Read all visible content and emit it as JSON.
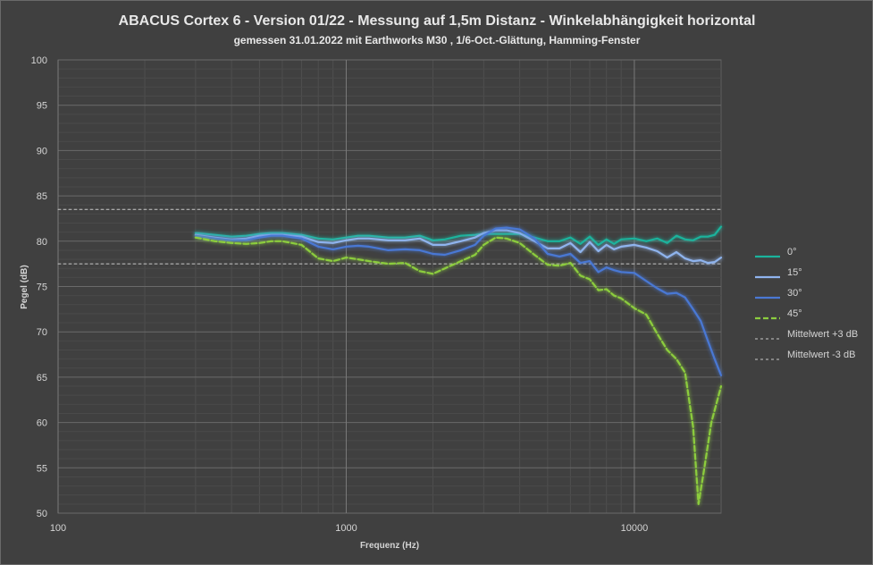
{
  "chart_data": {
    "type": "line",
    "title": "ABACUS Cortex 6 - Version 01/22 - Messung auf 1,5m Distanz - Winkelabhängigkeit horizontal",
    "subtitle": "gemessen 31.01.2022  mit Earthworks M30 , 1/6-Oct.-Glättung, Hamming-Fenster",
    "xlabel": "Frequenz (Hz)",
    "ylabel": "Pegel (dB)",
    "x_scale": "log",
    "xlim": [
      100,
      20000
    ],
    "ylim": [
      50,
      100
    ],
    "x_ticks": [
      100,
      1000,
      10000
    ],
    "x_tick_labels": [
      "100",
      "1000",
      "10000"
    ],
    "y_ticks": [
      50,
      55,
      60,
      65,
      70,
      75,
      80,
      85,
      90,
      95,
      100
    ],
    "y_tick_labels": [
      "50",
      "55",
      "60",
      "65",
      "70",
      "75",
      "80",
      "85",
      "90",
      "95",
      "100"
    ],
    "grid": true,
    "legend_position": "right",
    "series": [
      {
        "name": "0°",
        "color": "#1ab39c",
        "dash": "solid",
        "points": [
          [
            300,
            80.9
          ],
          [
            350,
            80.7
          ],
          [
            400,
            80.5
          ],
          [
            450,
            80.6
          ],
          [
            500,
            80.8
          ],
          [
            550,
            80.9
          ],
          [
            600,
            80.9
          ],
          [
            700,
            80.7
          ],
          [
            800,
            80.3
          ],
          [
            900,
            80.2
          ],
          [
            1000,
            80.4
          ],
          [
            1100,
            80.6
          ],
          [
            1200,
            80.6
          ],
          [
            1400,
            80.4
          ],
          [
            1600,
            80.4
          ],
          [
            1800,
            80.6
          ],
          [
            2000,
            80.1
          ],
          [
            2200,
            80.2
          ],
          [
            2500,
            80.6
          ],
          [
            2800,
            80.7
          ],
          [
            3000,
            80.8
          ],
          [
            3300,
            80.8
          ],
          [
            3600,
            80.8
          ],
          [
            4000,
            80.8
          ],
          [
            4500,
            80.4
          ],
          [
            5000,
            80.0
          ],
          [
            5500,
            80.0
          ],
          [
            6000,
            80.4
          ],
          [
            6500,
            79.7
          ],
          [
            7000,
            80.5
          ],
          [
            7500,
            79.6
          ],
          [
            8000,
            80.2
          ],
          [
            8500,
            79.7
          ],
          [
            9000,
            80.2
          ],
          [
            10000,
            80.3
          ],
          [
            11000,
            80.0
          ],
          [
            12000,
            80.3
          ],
          [
            13000,
            79.8
          ],
          [
            14000,
            80.6
          ],
          [
            15000,
            80.2
          ],
          [
            16000,
            80.1
          ],
          [
            17000,
            80.5
          ],
          [
            18000,
            80.5
          ],
          [
            19000,
            80.7
          ],
          [
            20000,
            81.6
          ]
        ]
      },
      {
        "name": "15°",
        "color": "#8fb4ee",
        "dash": "solid",
        "points": [
          [
            300,
            80.7
          ],
          [
            350,
            80.4
          ],
          [
            400,
            80.2
          ],
          [
            450,
            80.3
          ],
          [
            500,
            80.6
          ],
          [
            550,
            80.7
          ],
          [
            600,
            80.7
          ],
          [
            700,
            80.5
          ],
          [
            800,
            79.9
          ],
          [
            900,
            79.8
          ],
          [
            1000,
            80.1
          ],
          [
            1100,
            80.3
          ],
          [
            1200,
            80.3
          ],
          [
            1400,
            80.1
          ],
          [
            1600,
            80.1
          ],
          [
            1800,
            80.3
          ],
          [
            2000,
            79.6
          ],
          [
            2200,
            79.6
          ],
          [
            2500,
            80.0
          ],
          [
            2800,
            80.4
          ],
          [
            3000,
            80.9
          ],
          [
            3300,
            81.2
          ],
          [
            3600,
            81.2
          ],
          [
            4000,
            80.9
          ],
          [
            4500,
            80.0
          ],
          [
            5000,
            79.2
          ],
          [
            5500,
            79.2
          ],
          [
            6000,
            79.8
          ],
          [
            6500,
            78.8
          ],
          [
            7000,
            79.9
          ],
          [
            7500,
            78.9
          ],
          [
            8000,
            79.6
          ],
          [
            8500,
            79.1
          ],
          [
            9000,
            79.4
          ],
          [
            10000,
            79.6
          ],
          [
            11000,
            79.3
          ],
          [
            12000,
            78.9
          ],
          [
            13000,
            78.2
          ],
          [
            14000,
            78.8
          ],
          [
            15000,
            78.1
          ],
          [
            16000,
            77.8
          ],
          [
            17000,
            77.9
          ],
          [
            18000,
            77.6
          ],
          [
            19000,
            77.7
          ],
          [
            20000,
            78.2
          ]
        ]
      },
      {
        "name": "30°",
        "color": "#4a78d4",
        "dash": "solid",
        "points": [
          [
            300,
            80.6
          ],
          [
            350,
            80.3
          ],
          [
            400,
            80.1
          ],
          [
            450,
            80.1
          ],
          [
            500,
            80.4
          ],
          [
            550,
            80.6
          ],
          [
            600,
            80.6
          ],
          [
            700,
            80.3
          ],
          [
            800,
            79.4
          ],
          [
            900,
            79.1
          ],
          [
            1000,
            79.4
          ],
          [
            1100,
            79.5
          ],
          [
            1200,
            79.4
          ],
          [
            1400,
            79.0
          ],
          [
            1600,
            79.1
          ],
          [
            1800,
            79.0
          ],
          [
            2000,
            78.6
          ],
          [
            2200,
            78.5
          ],
          [
            2500,
            79.0
          ],
          [
            2800,
            79.6
          ],
          [
            3000,
            80.6
          ],
          [
            3300,
            81.4
          ],
          [
            3600,
            81.5
          ],
          [
            4000,
            81.3
          ],
          [
            4500,
            80.3
          ],
          [
            5000,
            78.6
          ],
          [
            5500,
            78.3
          ],
          [
            6000,
            78.6
          ],
          [
            6500,
            77.6
          ],
          [
            7000,
            77.8
          ],
          [
            7500,
            76.6
          ],
          [
            8000,
            77.1
          ],
          [
            8500,
            76.8
          ],
          [
            9000,
            76.6
          ],
          [
            10000,
            76.5
          ],
          [
            11000,
            75.6
          ],
          [
            12000,
            74.8
          ],
          [
            13000,
            74.2
          ],
          [
            14000,
            74.3
          ],
          [
            15000,
            73.8
          ],
          [
            16000,
            72.5
          ],
          [
            17000,
            71.2
          ],
          [
            18000,
            69.0
          ],
          [
            19000,
            67.0
          ],
          [
            20000,
            65.2
          ]
        ]
      },
      {
        "name": "45°",
        "color": "#8ccd3e",
        "dash": "dashed",
        "points": [
          [
            300,
            80.4
          ],
          [
            350,
            80.0
          ],
          [
            400,
            79.8
          ],
          [
            450,
            79.7
          ],
          [
            500,
            79.8
          ],
          [
            550,
            80.0
          ],
          [
            600,
            80.0
          ],
          [
            700,
            79.6
          ],
          [
            800,
            78.1
          ],
          [
            900,
            77.8
          ],
          [
            1000,
            78.2
          ],
          [
            1100,
            78.0
          ],
          [
            1200,
            77.8
          ],
          [
            1400,
            77.5
          ],
          [
            1600,
            77.6
          ],
          [
            1800,
            76.7
          ],
          [
            2000,
            76.4
          ],
          [
            2200,
            77.0
          ],
          [
            2500,
            77.8
          ],
          [
            2800,
            78.5
          ],
          [
            3000,
            79.6
          ],
          [
            3300,
            80.4
          ],
          [
            3600,
            80.3
          ],
          [
            4000,
            79.8
          ],
          [
            4500,
            78.5
          ],
          [
            5000,
            77.4
          ],
          [
            5500,
            77.3
          ],
          [
            6000,
            77.6
          ],
          [
            6500,
            76.2
          ],
          [
            7000,
            75.8
          ],
          [
            7500,
            74.6
          ],
          [
            8000,
            74.7
          ],
          [
            8500,
            74.0
          ],
          [
            9000,
            73.7
          ],
          [
            10000,
            72.6
          ],
          [
            11000,
            71.9
          ],
          [
            12000,
            69.8
          ],
          [
            13000,
            68.0
          ],
          [
            14000,
            67.0
          ],
          [
            15000,
            65.5
          ],
          [
            16000,
            59.5
          ],
          [
            16700,
            51.0
          ],
          [
            17500,
            55.0
          ],
          [
            18500,
            60.0
          ],
          [
            20000,
            64.0
          ]
        ]
      },
      {
        "name": "Mittelwert +3 dB",
        "color": "#c8c8c8",
        "dash": "dotted",
        "full_width": true,
        "points": [
          [
            100,
            83.5
          ],
          [
            20000,
            83.5
          ]
        ]
      },
      {
        "name": "Mittelwert -3 dB",
        "color": "#c8c8c8",
        "dash": "dotted",
        "full_width": true,
        "points": [
          [
            100,
            77.5
          ],
          [
            20000,
            77.5
          ]
        ]
      }
    ]
  }
}
